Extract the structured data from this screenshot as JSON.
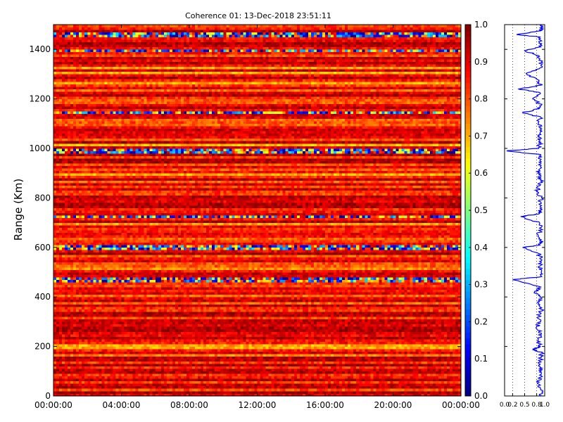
{
  "chart_data": [
    {
      "type": "heatmap",
      "title": "Coherence 01: 13-Dec-2018 23:51:11",
      "xlabel": "",
      "ylabel": "Range (Km)",
      "xlim": [
        "00:00:00",
        "24:00:00"
      ],
      "ylim": [
        0,
        1500
      ],
      "x_tick_labels": [
        "00:00:00",
        "04:00:00",
        "08:00:00",
        "12:00:00",
        "16:00:00",
        "20:00:00",
        "00:00:00"
      ],
      "y_ticks": [
        0,
        200,
        400,
        600,
        800,
        1000,
        1200,
        1400
      ],
      "colormap": "jet",
      "colorbar": {
        "range": [
          0.0,
          1.0
        ],
        "ticks": [
          "0.0",
          "0.1",
          "0.2",
          "0.3",
          "0.4",
          "0.5",
          "0.6",
          "0.7",
          "0.8",
          "0.9",
          "1.0"
        ]
      },
      "notes_levels": {
        "dominant_value": 0.87,
        "low_bands_km": [
          1460,
          1395,
          1145,
          990,
          725,
          600,
          470
        ]
      }
    },
    {
      "type": "line",
      "xlim": [
        0.0,
        1.0
      ],
      "ylim": [
        0,
        1500
      ],
      "x_tick_labels": [
        "0.0",
        "0.2",
        "0.5",
        "0.8",
        "1.0"
      ],
      "x_ticks": [
        0.0,
        0.2,
        0.5,
        0.8,
        1.0
      ],
      "y_ticks": [
        0,
        200,
        400,
        600,
        800,
        1000,
        1200,
        1400
      ],
      "line_color": "#0000ff",
      "gridlines_x": [
        0.2,
        0.5,
        0.8
      ],
      "grid_style": "dotted",
      "profile": [
        [
          0,
          0.93
        ],
        [
          25,
          0.9
        ],
        [
          50,
          0.82
        ],
        [
          75,
          0.88
        ],
        [
          100,
          0.91
        ],
        [
          125,
          0.86
        ],
        [
          150,
          0.9
        ],
        [
          175,
          0.93
        ],
        [
          190,
          0.7
        ],
        [
          200,
          0.9
        ],
        [
          225,
          0.84
        ],
        [
          250,
          0.92
        ],
        [
          275,
          0.78
        ],
        [
          300,
          0.9
        ],
        [
          325,
          0.86
        ],
        [
          350,
          0.92
        ],
        [
          375,
          0.85
        ],
        [
          400,
          0.88
        ],
        [
          420,
          0.75
        ],
        [
          440,
          0.9
        ],
        [
          470,
          0.2
        ],
        [
          480,
          0.86
        ],
        [
          500,
          0.91
        ],
        [
          525,
          0.88
        ],
        [
          550,
          0.93
        ],
        [
          575,
          0.85
        ],
        [
          600,
          0.45
        ],
        [
          610,
          0.88
        ],
        [
          625,
          0.92
        ],
        [
          650,
          0.84
        ],
        [
          675,
          0.9
        ],
        [
          700,
          0.87
        ],
        [
          725,
          0.4
        ],
        [
          735,
          0.85
        ],
        [
          750,
          0.9
        ],
        [
          775,
          0.86
        ],
        [
          800,
          0.92
        ],
        [
          825,
          0.8
        ],
        [
          850,
          0.88
        ],
        [
          875,
          0.91
        ],
        [
          900,
          0.83
        ],
        [
          925,
          0.9
        ],
        [
          950,
          0.88
        ],
        [
          975,
          0.9
        ],
        [
          990,
          0.05
        ],
        [
          1000,
          0.85
        ],
        [
          1025,
          0.9
        ],
        [
          1050,
          0.86
        ],
        [
          1075,
          0.92
        ],
        [
          1100,
          0.84
        ],
        [
          1125,
          0.9
        ],
        [
          1145,
          0.45
        ],
        [
          1160,
          0.86
        ],
        [
          1175,
          0.92
        ],
        [
          1200,
          0.7
        ],
        [
          1225,
          0.88
        ],
        [
          1240,
          0.35
        ],
        [
          1255,
          0.9
        ],
        [
          1275,
          0.86
        ],
        [
          1300,
          0.55
        ],
        [
          1325,
          0.88
        ],
        [
          1350,
          0.92
        ],
        [
          1375,
          0.85
        ],
        [
          1395,
          0.5
        ],
        [
          1410,
          0.9
        ],
        [
          1425,
          0.86
        ],
        [
          1450,
          0.88
        ],
        [
          1460,
          0.3
        ],
        [
          1475,
          0.9
        ],
        [
          1490,
          0.92
        ],
        [
          1500,
          0.9
        ]
      ]
    }
  ]
}
